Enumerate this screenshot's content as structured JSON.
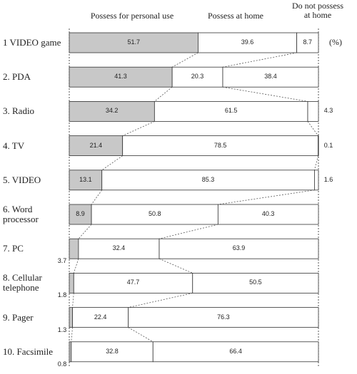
{
  "chart_data": {
    "type": "bar",
    "orientation": "horizontal",
    "stacked": true,
    "categories": [
      "1 VIDEO game",
      "2. PDA",
      "3. Radio",
      "4. TV",
      "5. VIDEO",
      "6. Word processor",
      "7. PC",
      "8. Cellular telephone",
      "9. Pager",
      "10. Facsimile"
    ],
    "series": [
      {
        "name": "Possess for personal use",
        "color": "#c8c8c8",
        "values": [
          51.7,
          41.3,
          34.2,
          21.4,
          13.1,
          8.9,
          3.7,
          1.8,
          1.3,
          0.8
        ]
      },
      {
        "name": "Possess at home",
        "color": "#ffffff",
        "values": [
          39.6,
          20.3,
          61.5,
          78.5,
          85.3,
          50.8,
          32.4,
          47.7,
          22.4,
          32.8
        ]
      },
      {
        "name": "Do not possess at home",
        "color": "#ffffff",
        "values": [
          8.7,
          38.4,
          4.3,
          0.1,
          1.6,
          40.3,
          63.9,
          50.5,
          76.3,
          66.4
        ]
      }
    ],
    "xlim": [
      0,
      100
    ],
    "unit_label": "(%)"
  }
}
